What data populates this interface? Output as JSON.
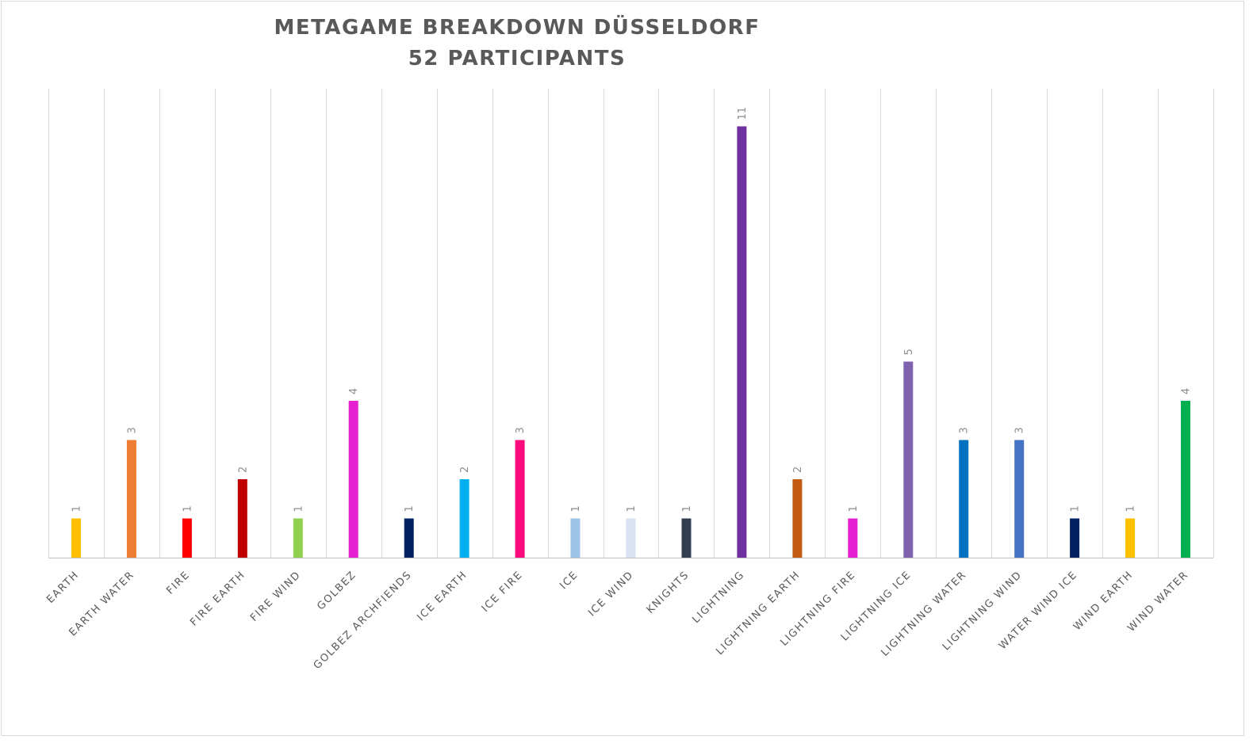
{
  "chart_data": {
    "type": "bar",
    "title": "METAGAME  BREAKDOWN  DÜSSELDORF",
    "subtitle": "52 PARTICIPANTS",
    "xlabel": "",
    "ylabel": "",
    "ylim": [
      0,
      12
    ],
    "grid": "vertical category separators",
    "legend": "none",
    "categories": [
      "EARTH",
      "EARTH WATER",
      "FIRE",
      "FIRE EARTH",
      "FIRE WIND",
      "GOLBEZ",
      "GOLBEZ ARCHFIENDS",
      "ICE EARTH",
      "ICE FIRE",
      "ICE",
      "ICE WIND",
      "KNIGHTS",
      "LIGHTNING",
      "LIGHTNING EARTH",
      "LIGHTNING FIRE",
      "LIGHTNING ICE",
      "LIGHTNING WATER",
      "LIGHTNING WIND",
      "WATER WIND ICE",
      "WIND EARTH",
      "WIND WATER"
    ],
    "values": [
      1,
      3,
      1,
      2,
      1,
      4,
      1,
      2,
      3,
      1,
      1,
      1,
      11,
      2,
      1,
      5,
      3,
      3,
      1,
      1,
      4
    ],
    "colors": [
      "#ffc000",
      "#ed7d31",
      "#ff0000",
      "#c00000",
      "#92d050",
      "#e61fd2",
      "#002060",
      "#00b0f0",
      "#ff0a7c",
      "#9dc3e6",
      "#d9e2f3",
      "#333f50",
      "#7030a0",
      "#c55a11",
      "#e61fd2",
      "#7e62ad",
      "#0070c0",
      "#4472c4",
      "#002060",
      "#ffc000",
      "#00b050"
    ]
  }
}
